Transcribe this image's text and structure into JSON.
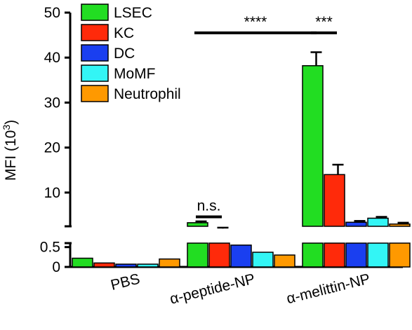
{
  "chart_data": {
    "type": "bar",
    "ylabel": "MFI (10",
    "ylabel_sup": "3",
    "ylabel_close": ")",
    "categories": [
      "PBS",
      "α-peptide-NP",
      "α-melittin-NP"
    ],
    "series": [
      {
        "name": "LSEC",
        "color": "#22dd22",
        "values": [
          0.22,
          3.3,
          38.2
        ],
        "errors": [
          0,
          0.3,
          3.0
        ]
      },
      {
        "name": "KC",
        "color": "#ff2a0a",
        "values": [
          0.1,
          2.0,
          14.0
        ],
        "errors": [
          0,
          0.2,
          2.2
        ]
      },
      {
        "name": "DC",
        "color": "#1a3ff0",
        "values": [
          0.07,
          0.55,
          3.4
        ],
        "errors": [
          0,
          0,
          0.3
        ]
      },
      {
        "name": "MoMF",
        "color": "#33f5f5",
        "values": [
          0.07,
          0.37,
          4.3
        ],
        "errors": [
          0,
          0,
          0.3
        ]
      },
      {
        "name": "Neutrophil",
        "color": "#ff9900",
        "values": [
          0.2,
          0.3,
          3.0
        ],
        "errors": [
          0,
          0,
          0.3
        ]
      }
    ],
    "axis": {
      "broken": true,
      "lower_range": [
        0,
        0.6
      ],
      "upper_range": [
        2.5,
        50
      ],
      "lower_ticks": [
        "0",
        "0.5"
      ],
      "upper_ticks": [
        "10",
        "20",
        "30",
        "40",
        "50"
      ]
    },
    "legend_position": "top-left",
    "annotations": [
      {
        "text": "n.s.",
        "category": "α-peptide-NP",
        "from_series": "LSEC",
        "to_series": "KC"
      },
      {
        "text": "****",
        "from_category": "α-peptide-NP",
        "to_category": "α-melittin-NP",
        "series": "LSEC"
      },
      {
        "text": "***",
        "category": "α-melittin-NP",
        "from_series": "LSEC",
        "to_series": "KC"
      }
    ]
  }
}
